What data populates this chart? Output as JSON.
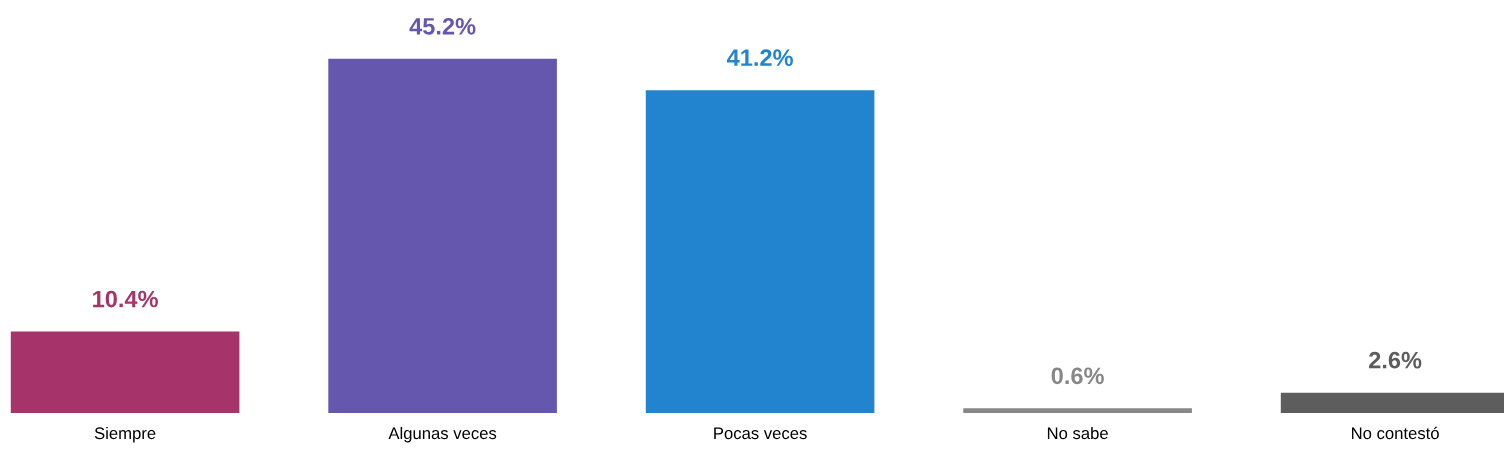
{
  "chart_data": {
    "type": "bar",
    "categories": [
      "Siempre",
      "Algunas veces",
      "Pocas veces",
      "No sabe",
      "No contestó"
    ],
    "values": [
      10.4,
      45.2,
      41.2,
      0.6,
      2.6
    ],
    "colors": [
      "#a6346b",
      "#6557ae",
      "#2283cf",
      "#878787",
      "#5d5d5d"
    ],
    "value_labels": [
      "10.4%",
      "45.2%",
      "41.2%",
      "0.6%",
      "2.6%"
    ],
    "grid": false,
    "legend": false
  }
}
